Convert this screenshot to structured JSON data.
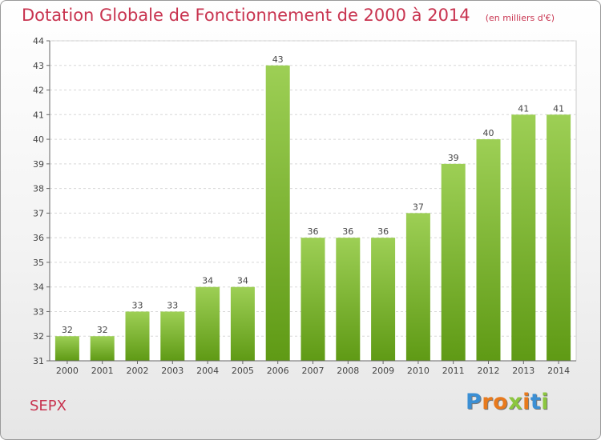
{
  "chart_data": {
    "type": "bar",
    "title": "Dotation Globale de Fonctionnement de 2000 à 2014",
    "subtitle": "(en milliers d'€)",
    "categories": [
      "2000",
      "2001",
      "2002",
      "2003",
      "2004",
      "2005",
      "2006",
      "2007",
      "2008",
      "2009",
      "2010",
      "2011",
      "2012",
      "2013",
      "2014"
    ],
    "values": [
      32,
      32,
      33,
      33,
      34,
      34,
      43,
      36,
      36,
      36,
      37,
      39,
      40,
      41,
      41
    ],
    "ylim": [
      31,
      44
    ],
    "yticks": [
      31,
      32,
      33,
      34,
      35,
      36,
      37,
      38,
      39,
      40,
      41,
      42,
      43,
      44
    ],
    "grid": true,
    "colors": {
      "bar_light": "#9dcf55",
      "bar_dark": "#5f9a15",
      "title": "#c8334f"
    }
  },
  "footer": {
    "commune": "SEPX",
    "brand": "Proxiti",
    "brand_colors": [
      "#3b8fd4",
      "#e87a1d",
      "#e87a1d",
      "#8cc63f",
      "#e87a1d",
      "#3b8fd4",
      "#8cc63f"
    ]
  }
}
